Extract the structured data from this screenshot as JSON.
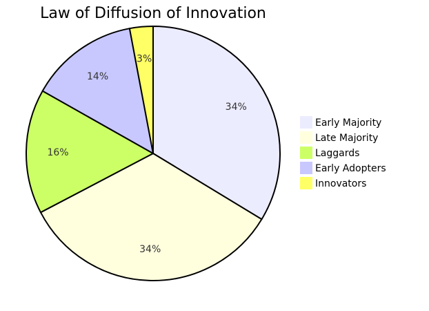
{
  "chart_data": {
    "type": "pie",
    "title": "Law of Diffusion of Innovation",
    "slices": [
      {
        "name": "Early Majority",
        "value": 34,
        "label": "34%",
        "color": "#ECECFF"
      },
      {
        "name": "Late Majority",
        "value": 34,
        "label": "34%",
        "color": "#FFFFDE"
      },
      {
        "name": "Laggards",
        "value": 16,
        "label": "16%",
        "color": "#CCFF66"
      },
      {
        "name": "Early Adopters",
        "value": 14,
        "label": "14%",
        "color": "#C8C8FF"
      },
      {
        "name": "Innovators",
        "value": 3,
        "label": "3%",
        "color": "#FFFF66"
      }
    ],
    "legend": {
      "position": "right",
      "items": [
        "Early Majority",
        "Late Majority",
        "Laggards",
        "Early Adopters",
        "Innovators"
      ]
    }
  }
}
